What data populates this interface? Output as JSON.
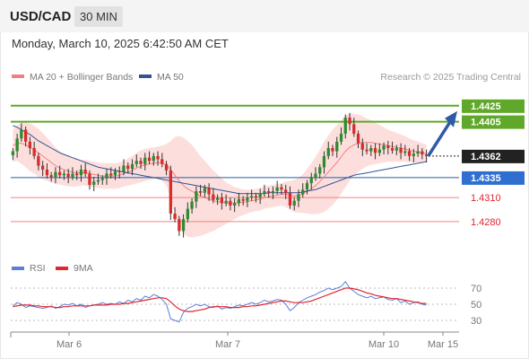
{
  "header": {
    "symbol": "USD/CAD",
    "interval": "30 MIN"
  },
  "datetime": "Monday, March 10, 2025 6:42:50 AM CET",
  "legend": {
    "price": [
      {
        "label": "MA 20 + Bollinger Bands",
        "color": "#f08080"
      },
      {
        "label": "MA 50",
        "color": "#2f5597"
      }
    ],
    "rsi": [
      {
        "label": "RSI",
        "color": "#5b7fd6"
      },
      {
        "label": "9MA",
        "color": "#e0262e"
      }
    ]
  },
  "credit": "Research © 2025 Trading Central",
  "chart_data": {
    "type": "candlestick",
    "ylim": [
      1.4245,
      1.4445
    ],
    "levels": [
      {
        "value": "1.4425",
        "kind": "resistance",
        "color": "#5fa82a"
      },
      {
        "value": "1.4405",
        "kind": "resistance",
        "color": "#5fa82a"
      },
      {
        "value": "1.4362",
        "kind": "current",
        "color": "#222222"
      },
      {
        "value": "1.4335",
        "kind": "pivot",
        "color": "#2f6fd0"
      },
      {
        "value": "1.4310",
        "kind": "support",
        "color": "#e0262e"
      },
      {
        "value": "1.4280",
        "kind": "support",
        "color": "#e0262e"
      }
    ],
    "x_ticks": [
      "Mar 6",
      "Mar 7",
      "Mar 10",
      "Mar 15"
    ],
    "closes": [
      1.4368,
      1.4384,
      1.4395,
      1.438,
      1.4372,
      1.4362,
      1.435,
      1.4345,
      1.4338,
      1.4336,
      1.4342,
      1.4338,
      1.434,
      1.4336,
      1.434,
      1.4338,
      1.4345,
      1.434,
      1.4326,
      1.433,
      1.4332,
      1.4334,
      1.434,
      1.4338,
      1.4343,
      1.4342,
      1.435,
      1.4346,
      1.4352,
      1.4356,
      1.4352,
      1.436,
      1.4356,
      1.4362,
      1.4358,
      1.4352,
      1.4344,
      1.429,
      1.4283,
      1.4268,
      1.4283,
      1.4296,
      1.4305,
      1.4318,
      1.4316,
      1.4322,
      1.4314,
      1.4307,
      1.431,
      1.4303,
      1.4306,
      1.43,
      1.4303,
      1.4308,
      1.4306,
      1.431,
      1.4312,
      1.431,
      1.4315,
      1.4318,
      1.4316,
      1.4318,
      1.4323,
      1.432,
      1.4316,
      1.43,
      1.4306,
      1.4314,
      1.432,
      1.4328,
      1.4335,
      1.434,
      1.4348,
      1.4362,
      1.4372,
      1.4368,
      1.438,
      1.439,
      1.441,
      1.4402,
      1.439,
      1.4378,
      1.437,
      1.4368,
      1.4372,
      1.4366,
      1.437,
      1.4375,
      1.4372,
      1.4369,
      1.4372,
      1.4366,
      1.4368,
      1.4362,
      1.4365,
      1.4368,
      1.4364,
      1.4362
    ],
    "ma20": [
      1.4375,
      1.4378,
      1.4378,
      1.4376,
      1.4373,
      1.437,
      1.4366,
      1.4362,
      1.4358,
      1.4354,
      1.435,
      1.4347,
      1.4345,
      1.4343,
      1.4342,
      1.4341,
      1.4341,
      1.4341,
      1.434,
      1.4339,
      1.4338,
      1.4337,
      1.4337,
      1.4337,
      1.4337,
      1.4338,
      1.434,
      1.4342,
      1.4344,
      1.4347,
      1.4349,
      1.4351,
      1.4352,
      1.4353,
      1.4354,
      1.4353,
      1.4351,
      1.4345,
      1.4338,
      1.4331,
      1.4325,
      1.4321,
      1.4318,
      1.4315,
      1.4312,
      1.431,
      1.4308,
      1.4306,
      1.4305,
      1.4304,
      1.4303,
      1.4303,
      1.4303,
      1.4304,
      1.4304,
      1.4305,
      1.4306,
      1.4307,
      1.4308,
      1.431,
      1.4311,
      1.4312,
      1.4313,
      1.4314,
      1.4314,
      1.4313,
      1.4312,
      1.4313,
      1.4315,
      1.4318,
      1.4321,
      1.4325,
      1.433,
      1.4336,
      1.4342,
      1.4348,
      1.4354,
      1.4361,
      1.4368,
      1.4373,
      1.4376,
      1.4378,
      1.4379,
      1.4379,
      1.4379,
      1.4378,
      1.4377,
      1.4376,
      1.4375,
      1.4374,
      1.4373,
      1.4372,
      1.4371,
      1.4369,
      1.4368,
      1.4367,
      1.4366,
      1.4365
    ],
    "band_width": [
      0.002,
      0.0022,
      0.0026,
      0.0028,
      0.003,
      0.003,
      0.003,
      0.0029,
      0.0027,
      0.0025,
      0.0023,
      0.0021,
      0.002,
      0.0019,
      0.0018,
      0.0017,
      0.0016,
      0.0016,
      0.0016,
      0.0016,
      0.0016,
      0.0016,
      0.0016,
      0.0016,
      0.0016,
      0.0016,
      0.0016,
      0.0017,
      0.0018,
      0.0019,
      0.002,
      0.002,
      0.002,
      0.002,
      0.002,
      0.0022,
      0.0026,
      0.0036,
      0.0048,
      0.0056,
      0.006,
      0.006,
      0.0058,
      0.0054,
      0.005,
      0.0046,
      0.0042,
      0.0038,
      0.0034,
      0.003,
      0.0026,
      0.0023,
      0.002,
      0.0018,
      0.0016,
      0.0015,
      0.0014,
      0.0014,
      0.0014,
      0.0014,
      0.0014,
      0.0014,
      0.0014,
      0.0014,
      0.0016,
      0.0018,
      0.002,
      0.0022,
      0.0024,
      0.0028,
      0.0032,
      0.0036,
      0.004,
      0.0044,
      0.0046,
      0.0047,
      0.0047,
      0.0046,
      0.0045,
      0.0042,
      0.0039,
      0.0036,
      0.0033,
      0.003,
      0.0028,
      0.0026,
      0.0024,
      0.0022,
      0.002,
      0.0019,
      0.0018,
      0.0017,
      0.0016,
      0.0015,
      0.0014,
      0.0013,
      0.0012,
      0.0011
    ],
    "ma50": [
      1.44,
      1.4398,
      1.4395,
      1.4392,
      1.4389,
      1.4385,
      1.4381,
      1.4378,
      1.4375,
      1.4372,
      1.4369,
      1.4366,
      1.4364,
      1.4362,
      1.436,
      1.4358,
      1.4356,
      1.4354,
      1.4352,
      1.435,
      1.4348,
      1.4347,
      1.4346,
      1.4345,
      1.4344,
      1.4343,
      1.4342,
      1.4341,
      1.434,
      1.4339,
      1.4338,
      1.4337,
      1.4336,
      1.4335,
      1.4334,
      1.4333,
      1.4332,
      1.4331,
      1.433,
      1.4329,
      1.4328,
      1.4327,
      1.4326,
      1.4325,
      1.4324,
      1.4323,
      1.4322,
      1.4321,
      1.432,
      1.4319,
      1.4318,
      1.4317,
      1.4316,
      1.4315,
      1.4315,
      1.4315,
      1.4315,
      1.4315,
      1.4315,
      1.4315,
      1.4316,
      1.4316,
      1.4316,
      1.4316,
      1.4316,
      1.4316,
      1.4316,
      1.4316,
      1.4317,
      1.4318,
      1.4319,
      1.432,
      1.4322,
      1.4324,
      1.4326,
      1.4328,
      1.433,
      1.4332,
      1.4334,
      1.4336,
      1.4338,
      1.4339,
      1.434,
      1.4341,
      1.4342,
      1.4343,
      1.4344,
      1.4345,
      1.4346,
      1.4347,
      1.4348,
      1.4349,
      1.435,
      1.4351,
      1.4352,
      1.4353,
      1.4354,
      1.4355
    ],
    "rsi": {
      "ylim": [
        20,
        80
      ],
      "ticks": [
        "70",
        "50",
        "30"
      ],
      "rsi": [
        48,
        52,
        50,
        46,
        48,
        47,
        46,
        45,
        46,
        48,
        45,
        47,
        50,
        49,
        51,
        48,
        50,
        46,
        48,
        49,
        50,
        52,
        50,
        51,
        50,
        53,
        51,
        55,
        53,
        57,
        55,
        60,
        58,
        62,
        60,
        56,
        50,
        32,
        30,
        28,
        40,
        45,
        47,
        50,
        48,
        50,
        47,
        46,
        48,
        44,
        46,
        45,
        47,
        49,
        48,
        50,
        52,
        50,
        52,
        55,
        53,
        54,
        56,
        55,
        50,
        42,
        46,
        52,
        55,
        58,
        60,
        62,
        65,
        67,
        70,
        68,
        70,
        72,
        78,
        70,
        66,
        62,
        60,
        58,
        60,
        57,
        58,
        59,
        56,
        55,
        57,
        52,
        54,
        50,
        52,
        53,
        50,
        49
      ],
      "ma9": [
        47,
        48,
        49,
        49,
        49,
        48,
        48,
        47,
        47,
        47,
        46,
        46,
        47,
        47,
        48,
        48,
        48,
        48,
        48,
        49,
        49,
        49,
        49,
        50,
        50,
        50,
        51,
        51,
        52,
        53,
        54,
        55,
        56,
        57,
        58,
        58,
        57,
        53,
        48,
        44,
        42,
        41,
        41,
        42,
        43,
        44,
        46,
        47,
        47,
        47,
        47,
        46,
        46,
        46,
        47,
        47,
        48,
        48,
        49,
        50,
        51,
        52,
        53,
        54,
        54,
        53,
        52,
        52,
        52,
        53,
        54,
        56,
        58,
        60,
        62,
        64,
        66,
        68,
        70,
        70,
        69,
        68,
        66,
        64,
        63,
        61,
        60,
        59,
        58,
        57,
        57,
        56,
        55,
        54,
        53,
        52,
        51,
        51
      ]
    }
  }
}
